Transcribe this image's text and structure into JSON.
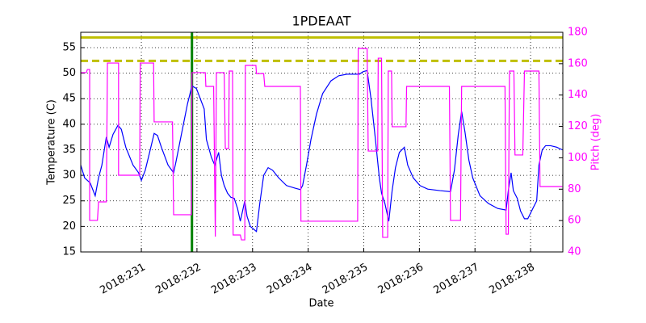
{
  "chart_data": {
    "type": "line",
    "title": "1PDEAAT",
    "x_label": "Date",
    "y_label": "Temperature (C)",
    "y2_label": "Pitch (deg)",
    "y2_color": "#ff00ff",
    "grid": true,
    "xlim": [
      229.91,
      238.58
    ],
    "xticks": [
      {
        "value": 231,
        "label": "2018:231"
      },
      {
        "value": 232,
        "label": "2018:232"
      },
      {
        "value": 233,
        "label": "2018:233"
      },
      {
        "value": 234,
        "label": "2018:234"
      },
      {
        "value": 235,
        "label": "2018:235"
      },
      {
        "value": 236,
        "label": "2018:236"
      },
      {
        "value": 237,
        "label": "2018:237"
      },
      {
        "value": 238,
        "label": "2018:238"
      }
    ],
    "ylim": [
      15,
      58
    ],
    "yticks": [
      15,
      20,
      25,
      30,
      35,
      40,
      45,
      50,
      55
    ],
    "y2lim": [
      40,
      180
    ],
    "y2ticks": [
      40,
      60,
      80,
      100,
      120,
      140,
      160,
      180
    ],
    "hlines": [
      {
        "value": 57,
        "color": "#bfbf00",
        "style": "solid"
      },
      {
        "value": 52.4,
        "color": "#bfbf00",
        "style": "dashed"
      }
    ],
    "vlines": [
      {
        "value": 231.91,
        "color": "#008000",
        "style": "solid"
      }
    ],
    "series": [
      {
        "color": "#0000ff",
        "axis": "y",
        "x": [
          229.91,
          229.98,
          230.08,
          230.17,
          230.23,
          230.29,
          230.37,
          230.42,
          230.49,
          230.58,
          230.64,
          230.72,
          230.85,
          230.95,
          231.0,
          231.07,
          231.16,
          231.23,
          231.29,
          231.36,
          231.48,
          231.58,
          231.62,
          231.72,
          231.83,
          231.91,
          231.99,
          232.06,
          232.13,
          232.17,
          232.26,
          232.32,
          232.39,
          232.44,
          232.49,
          232.55,
          232.61,
          232.67,
          232.73,
          232.78,
          232.86,
          232.9,
          232.96,
          233.07,
          233.13,
          233.2,
          233.28,
          233.36,
          233.47,
          233.61,
          233.76,
          233.86,
          233.9,
          233.97,
          234.05,
          234.15,
          234.26,
          234.41,
          234.55,
          234.7,
          234.92,
          234.99,
          235.06,
          235.13,
          235.21,
          235.28,
          235.32,
          235.38,
          235.45,
          235.51,
          235.57,
          235.64,
          235.73,
          235.79,
          235.89,
          236.01,
          236.15,
          236.37,
          236.56,
          236.63,
          236.7,
          236.76,
          236.82,
          236.89,
          236.96,
          237.09,
          237.24,
          237.41,
          237.56,
          237.6,
          237.65,
          237.69,
          237.76,
          237.82,
          237.89,
          237.95,
          238.04,
          238.11,
          238.15,
          238.21,
          238.27,
          238.36,
          238.47,
          238.57
        ],
        "values": [
          32,
          29.5,
          28.5,
          26,
          29.5,
          32,
          37.5,
          35.5,
          38,
          39.8,
          39,
          35.5,
          32,
          30.5,
          29,
          31,
          35,
          38.2,
          37.8,
          35.5,
          32,
          30.5,
          32.5,
          38,
          44,
          47.5,
          47,
          45,
          43,
          37,
          33.5,
          32,
          34.5,
          30,
          28,
          26.5,
          25.7,
          25.5,
          23.5,
          21,
          25,
          22,
          20,
          19,
          24.5,
          30,
          31.5,
          31,
          29.5,
          28,
          27.5,
          27.2,
          28,
          32,
          37,
          42,
          46,
          48.5,
          49.5,
          49.8,
          49.8,
          50.3,
          50.5,
          45,
          37,
          29.5,
          26.5,
          24.5,
          21,
          27,
          31.5,
          34.5,
          35.5,
          32,
          29.5,
          28,
          27.3,
          27,
          26.8,
          31,
          38,
          42.5,
          38.5,
          33,
          29.5,
          26,
          24.5,
          23.5,
          23.2,
          27,
          30.5,
          27,
          25.5,
          23,
          21.5,
          21.5,
          23.5,
          25,
          32,
          35,
          35.8,
          35.8,
          35.5,
          35
        ]
      },
      {
        "color": "#ff00ff",
        "axis": "y2",
        "x": [
          229.91,
          230.01,
          230.03,
          230.07,
          230.07,
          230.21,
          230.23,
          230.37,
          230.39,
          230.59,
          230.59,
          230.97,
          230.98,
          231.22,
          231.23,
          231.56,
          231.58,
          231.9,
          231.91,
          232.15,
          232.16,
          232.3,
          232.33,
          232.35,
          232.49,
          232.51,
          232.57,
          232.58,
          232.64,
          232.65,
          232.78,
          232.8,
          232.86,
          232.87,
          233.06,
          233.07,
          233.2,
          233.22,
          233.86,
          233.87,
          234.89,
          234.9,
          235.06,
          235.08,
          235.25,
          235.26,
          235.32,
          235.34,
          235.43,
          235.44,
          235.5,
          235.51,
          235.76,
          235.77,
          236.54,
          236.56,
          236.74,
          236.76,
          237.54,
          237.56,
          237.6,
          237.62,
          237.7,
          237.72,
          237.86,
          237.89,
          238.15,
          238.17,
          238.57
        ],
        "values": [
          154.3,
          154.3,
          156.3,
          156.3,
          60.1,
          60.1,
          71.9,
          71.9,
          160.4,
          160.4,
          88.9,
          88.9,
          160.4,
          160.4,
          122.9,
          122.9,
          63.7,
          63.7,
          154.3,
          154.3,
          145.5,
          145.5,
          49.8,
          154.3,
          154.3,
          105.9,
          105.9,
          155.3,
          155.3,
          50.8,
          50.8,
          47.7,
          47.7,
          158.9,
          158.9,
          153.7,
          153.7,
          145.5,
          145.5,
          59.6,
          59.6,
          169.7,
          169.7,
          104.3,
          104.3,
          163.5,
          163.5,
          49.3,
          49.3,
          155.3,
          155.3,
          119.8,
          119.8,
          145.5,
          145.5,
          60.1,
          60.1,
          145.5,
          145.5,
          51.3,
          51.3,
          155.3,
          155.3,
          101.8,
          101.8,
          155.3,
          155.3,
          81.7,
          81.7
        ]
      }
    ]
  }
}
